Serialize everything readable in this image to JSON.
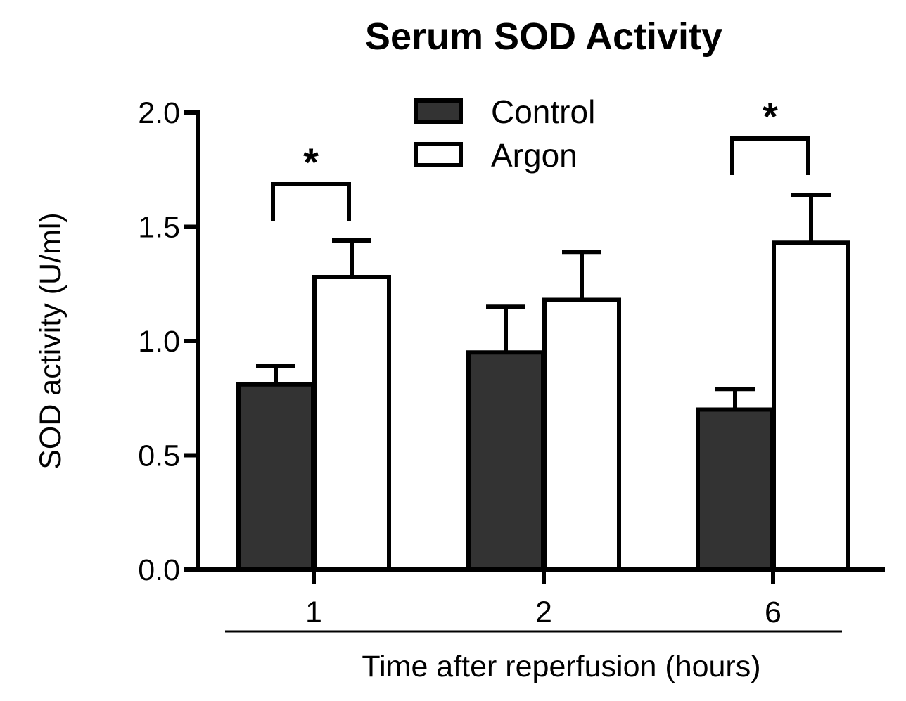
{
  "chart_data": {
    "type": "bar",
    "title": "Serum SOD Activity",
    "xlabel": "Time after reperfusion (hours)",
    "ylabel": "SOD activity (U/ml)",
    "ylim": [
      0,
      2.0
    ],
    "yticks": [
      "0.0",
      "0.5",
      "1.0",
      "1.5",
      "2.0"
    ],
    "categories": [
      "1",
      "2",
      "6"
    ],
    "legend_position": "top-center",
    "series": [
      {
        "name": "Control",
        "values": [
          0.81,
          0.95,
          0.7
        ],
        "errors": [
          0.08,
          0.2,
          0.09
        ],
        "color": "#333333"
      },
      {
        "name": "Argon",
        "values": [
          1.28,
          1.18,
          1.43
        ],
        "errors": [
          0.16,
          0.21,
          0.21
        ],
        "color": "#ffffff"
      }
    ],
    "significance": [
      {
        "category": "1",
        "label": "*"
      },
      {
        "category": "6",
        "label": "*"
      }
    ]
  }
}
